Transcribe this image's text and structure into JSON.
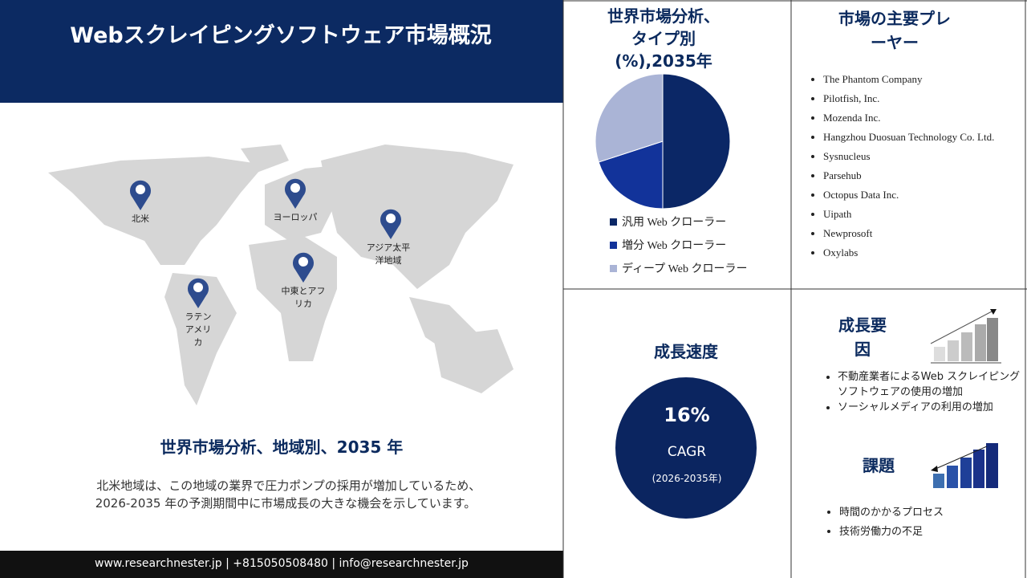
{
  "header": {
    "title": "Webスクレイピングソフトウェア市場概況"
  },
  "map": {
    "pins": [
      "北米",
      "ヨーロッパ",
      "アジア太平洋地域",
      "中東とアフリカ",
      "ラテンアメリカ"
    ],
    "title": "世界市場分析、地域別、2035 年",
    "description": "北米地域は、この地域の業界で圧力ポンプの採用が増加しているため、　2026-2035 年の予測期間中に市場成長の大きな機会を示しています。"
  },
  "pie": {
    "type": "pie",
    "title": "世界市場分析、タイプ別 (%),2035年",
    "categories": [
      "汎用 Web クローラー",
      "増分 Web クローラー",
      "ディープ Web クローラー"
    ],
    "values": [
      50,
      20,
      30
    ],
    "colors": [
      "#0b2766",
      "#12339a",
      "#aab4d6"
    ]
  },
  "players": {
    "title": "市場の主要プレーヤー",
    "items": [
      "The Phantom Company",
      "Pilotfish, Inc.",
      "Mozenda Inc.",
      "Hangzhou Duosuan Technology Co. Ltd.",
      "Sysnucleus",
      "Parsehub",
      "Octopus Data Inc.",
      "Uipath",
      "Newprosoft",
      "Oxylabs"
    ]
  },
  "growth": {
    "title": "成長速度",
    "value": "16%",
    "label": "CAGR",
    "period": "(2026-2035年)"
  },
  "factors": {
    "title": "成長要因",
    "items": [
      "不動産業者によるWeb スクレイピング ソフトウェアの使用の増加",
      "ソーシャルメディアの利用の増加"
    ]
  },
  "challenges": {
    "title": "課題",
    "items": [
      "時間のかかるプロセス",
      "技術労働力の不足"
    ]
  },
  "footer": {
    "text": "www.researchnester.jp | +815050508480 | info@researchnester.jp"
  }
}
